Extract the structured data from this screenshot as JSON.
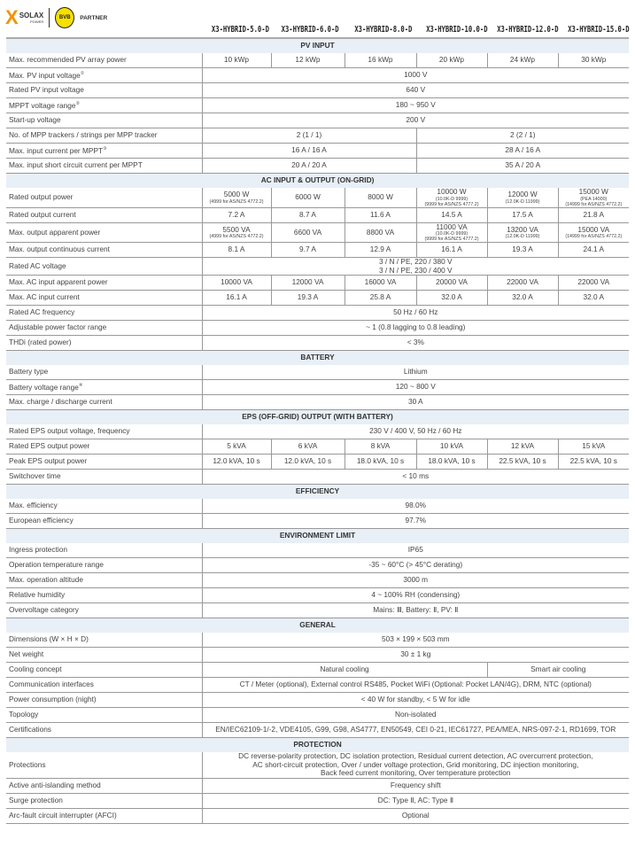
{
  "brand": {
    "logo": "SOLAX POWER",
    "partner_logo": "BVB 09",
    "partner_label": "PARTNER",
    "accent": "#f39200"
  },
  "models": [
    "X3-HYBRID-5.0-D",
    "X3-HYBRID-6.0-D",
    "X3-HYBRID-8.0-D",
    "X3-HYBRID-10.0-D",
    "X3-HYBRID-12.0-D",
    "X3-HYBRID-15.0-D"
  ],
  "sections": [
    {
      "title": "PV INPUT",
      "rows": [
        {
          "label": "Max. recommended PV array power",
          "cells": [
            {
              "v": "10 kWp"
            },
            {
              "v": "12 kWp"
            },
            {
              "v": "16 kWp"
            },
            {
              "v": "20 kWp"
            },
            {
              "v": "24 kWp"
            },
            {
              "v": "30 kWp"
            }
          ]
        },
        {
          "label": "Max. PV input voltage",
          "sup": "①",
          "cells": [
            {
              "v": "1000 V",
              "span": 6
            }
          ]
        },
        {
          "label": "Rated PV input voltage",
          "cells": [
            {
              "v": "640 V",
              "span": 6
            }
          ]
        },
        {
          "label": "MPPT voltage range",
          "sup": "②",
          "cells": [
            {
              "v": "180 ~ 950 V",
              "span": 6
            }
          ]
        },
        {
          "label": "Start-up voltage",
          "cells": [
            {
              "v": "200 V",
              "span": 6
            }
          ]
        },
        {
          "label": "No. of MPP trackers / strings per MPP tracker",
          "cells": [
            {
              "v": "2 (1 / 1)",
              "span": 3
            },
            {
              "v": "2 (2 / 1)",
              "span": 3
            }
          ]
        },
        {
          "label": "Max. input current per MPPT",
          "sup": "③",
          "cells": [
            {
              "v": "16 A / 16 A",
              "span": 3
            },
            {
              "v": "28 A / 16 A",
              "span": 3
            }
          ]
        },
        {
          "label": "Max. input short circuit current per MPPT",
          "cells": [
            {
              "v": "20 A / 20 A",
              "span": 3
            },
            {
              "v": "35 A / 20 A",
              "span": 3
            }
          ]
        }
      ]
    },
    {
      "title": "AC INPUT & OUTPUT (ON-GRID)",
      "rows": [
        {
          "label": "Rated output power",
          "cells": [
            {
              "v": "5000 W",
              "sub": "(4999 for AS/NZS 4772.2)"
            },
            {
              "v": "6000 W"
            },
            {
              "v": "8000 W"
            },
            {
              "v": "10000 W",
              "sub": "(10.0K-D 9999)\n(9999 for AS/NZS 4777.2)"
            },
            {
              "v": "12000 W",
              "sub": "(12.0K-D 11999)"
            },
            {
              "v": "15000 W",
              "sub": "(PEA 14000)\n(14999 for AS/NZS 4772.2)"
            }
          ]
        },
        {
          "label": "Rated output current",
          "cells": [
            {
              "v": "7.2 A"
            },
            {
              "v": "8.7 A"
            },
            {
              "v": "11.6 A"
            },
            {
              "v": "14.5 A"
            },
            {
              "v": "17.5 A"
            },
            {
              "v": "21.8 A"
            }
          ]
        },
        {
          "label": "Max. output apparent power",
          "cells": [
            {
              "v": "5500 VA",
              "sub": "(4999 for AS/NZS 4772.2)"
            },
            {
              "v": "6600 VA"
            },
            {
              "v": "8800 VA"
            },
            {
              "v": "11000 VA",
              "sub": "(10.0K-D 9999)\n(9999 for AS/NZS 4777.2)"
            },
            {
              "v": "13200 VA",
              "sub": "(12.0K-D 11999)"
            },
            {
              "v": "15000 VA",
              "sub": "(14999 for AS/NZS 4772.2)"
            }
          ]
        },
        {
          "label": "Max. output continuous current",
          "cells": [
            {
              "v": "8.1 A"
            },
            {
              "v": "9.7 A"
            },
            {
              "v": "12.9 A"
            },
            {
              "v": "16.1 A"
            },
            {
              "v": "19.3 A"
            },
            {
              "v": "24.1 A"
            }
          ]
        },
        {
          "label": "Rated AC voltage",
          "cells": [
            {
              "v": "3 / N / PE, 220 / 380 V\n3 / N / PE, 230 / 400 V",
              "span": 6
            }
          ]
        },
        {
          "label": "Max. AC input apparent power",
          "cells": [
            {
              "v": "10000 VA"
            },
            {
              "v": "12000 VA"
            },
            {
              "v": "16000 VA"
            },
            {
              "v": "20000 VA"
            },
            {
              "v": "22000 VA"
            },
            {
              "v": "22000 VA"
            }
          ]
        },
        {
          "label": "Max. AC input current",
          "cells": [
            {
              "v": "16.1 A"
            },
            {
              "v": "19.3 A"
            },
            {
              "v": "25.8 A"
            },
            {
              "v": "32.0 A"
            },
            {
              "v": "32.0 A"
            },
            {
              "v": "32.0 A"
            }
          ]
        },
        {
          "label": "Rated AC frequency",
          "cells": [
            {
              "v": "50 Hz / 60 Hz",
              "span": 6
            }
          ]
        },
        {
          "label": "Adjustable power factor range",
          "cells": [
            {
              "v": "~ 1 (0.8 lagging to 0.8 leading)",
              "span": 6
            }
          ]
        },
        {
          "label": "THDi (rated power)",
          "cells": [
            {
              "v": "< 3%",
              "span": 6
            }
          ]
        }
      ]
    },
    {
      "title": "BATTERY",
      "rows": [
        {
          "label": "Battery type",
          "cells": [
            {
              "v": "Lithium",
              "span": 6
            }
          ]
        },
        {
          "label": "Battery voltage range",
          "sup": "④",
          "cells": [
            {
              "v": "120 ~ 800 V",
              "span": 6
            }
          ]
        },
        {
          "label": "Max. charge / discharge current",
          "cells": [
            {
              "v": "30 A",
              "span": 6
            }
          ]
        }
      ]
    },
    {
      "title": "EPS (OFF-GRID) OUTPUT (WITH BATTERY)",
      "rows": [
        {
          "label": "Rated EPS output voltage, frequency",
          "cells": [
            {
              "v": "230 V / 400 V, 50 Hz / 60 Hz",
              "span": 6
            }
          ]
        },
        {
          "label": "Rated EPS output power",
          "cells": [
            {
              "v": "5 kVA"
            },
            {
              "v": "6 kVA"
            },
            {
              "v": "8 kVA"
            },
            {
              "v": "10 kVA"
            },
            {
              "v": "12 kVA"
            },
            {
              "v": "15 kVA"
            }
          ]
        },
        {
          "label": "Peak EPS output power",
          "cells": [
            {
              "v": "12.0 kVA, 10 s"
            },
            {
              "v": "12.0 kVA, 10 s"
            },
            {
              "v": "18.0 kVA, 10 s"
            },
            {
              "v": "18.0 kVA, 10 s"
            },
            {
              "v": "22.5 kVA, 10 s"
            },
            {
              "v": "22.5 kVA, 10 s"
            }
          ]
        },
        {
          "label": "Switchover time",
          "cells": [
            {
              "v": "< 10 ms",
              "span": 6
            }
          ]
        }
      ]
    },
    {
      "title": "EFFICIENCY",
      "rows": [
        {
          "label": "Max. efficiency",
          "cells": [
            {
              "v": "98.0%",
              "span": 6
            }
          ]
        },
        {
          "label": "European efficiency",
          "cells": [
            {
              "v": "97.7%",
              "span": 6
            }
          ]
        }
      ]
    },
    {
      "title": "ENVIRONMENT LIMIT",
      "rows": [
        {
          "label": "Ingress protection",
          "cells": [
            {
              "v": "IP65",
              "span": 6
            }
          ]
        },
        {
          "label": "Operation temperature range",
          "cells": [
            {
              "v": "-35 ~ 60°C (> 45°C derating)",
              "span": 6
            }
          ]
        },
        {
          "label": "Max. operation altitude",
          "cells": [
            {
              "v": "3000 m",
              "span": 6
            }
          ]
        },
        {
          "label": "Relative humidity",
          "cells": [
            {
              "v": "4 ~ 100% RH (condensing)",
              "span": 6
            }
          ]
        },
        {
          "label": "Overvoltage category",
          "cells": [
            {
              "v": "Mains: Ⅲ, Battery: Ⅱ, PV: Ⅱ",
              "span": 6
            }
          ]
        }
      ]
    },
    {
      "title": "GENERAL",
      "rows": [
        {
          "label": "Dimensions (W × H × D)",
          "cells": [
            {
              "v": "503 × 199 × 503 mm",
              "span": 6
            }
          ]
        },
        {
          "label": "Net weight",
          "cells": [
            {
              "v": "30 ± 1 kg",
              "span": 6
            }
          ]
        },
        {
          "label": "Cooling concept",
          "cells": [
            {
              "v": "Natural cooling",
              "span": 4
            },
            {
              "v": "Smart air cooling",
              "span": 2
            }
          ]
        },
        {
          "label": "Communication interfaces",
          "cells": [
            {
              "v": "CT / Meter (optional), External control RS485, Pocket WiFi (Optional: Pocket LAN/4G),  DRM, NTC (optional)",
              "span": 6
            }
          ]
        },
        {
          "label": "Power consumption (night)",
          "cells": [
            {
              "v": "< 40 W for standby, < 5 W for idle",
              "span": 6
            }
          ]
        },
        {
          "label": "Topology",
          "cells": [
            {
              "v": "Non-isolated",
              "span": 6
            }
          ]
        },
        {
          "label": "Certifications",
          "cells": [
            {
              "v": "EN/IEC62109-1/-2, VDE4105, G99, G98, AS4777, EN50549, CEI 0-21, IEC61727, PEA/MEA, NRS-097-2-1, RD1699, TOR",
              "span": 6
            }
          ]
        }
      ]
    },
    {
      "title": "PROTECTION",
      "rows": [
        {
          "label": "Protections",
          "cells": [
            {
              "v": "DC reverse-polarity protection, DC isolation protection, Residual current detection, AC overcurrent protection,\nAC short-circuit protection, Over / under voltage protection, Grid monitoring, DC injection monitoring,\nBack feed current monitoring, Over temperature protection",
              "span": 6
            }
          ]
        },
        {
          "label": "Active anti-islanding method",
          "cells": [
            {
              "v": "Frequency shift",
              "span": 6
            }
          ]
        },
        {
          "label": "Surge protection",
          "cells": [
            {
              "v": "DC: Type Ⅱ, AC: Type Ⅱ",
              "span": 6
            }
          ]
        },
        {
          "label": "Arc-fault circuit interrupter (AFCI)",
          "cells": [
            {
              "v": "Optional",
              "span": 6
            }
          ]
        }
      ]
    }
  ]
}
